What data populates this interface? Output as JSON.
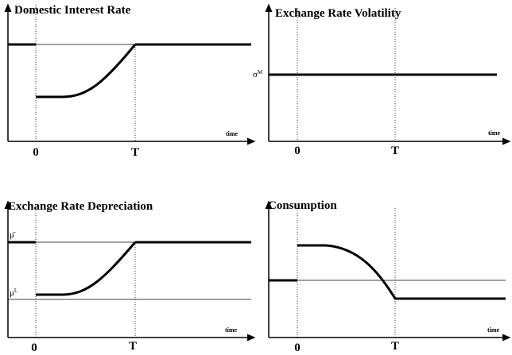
{
  "panels": [
    {
      "title": "Domestic Interest Rate",
      "axis_label": "time",
      "ticks": [
        "0",
        "T"
      ]
    },
    {
      "title": "Exchange Rate Volatility",
      "axis_label": "time",
      "ticks": [
        "0",
        "T"
      ],
      "levels": [
        "σ",
        "M"
      ]
    },
    {
      "title": "Exchange Rate Depreciation",
      "axis_label": "time",
      "ticks": [
        "0",
        "T"
      ],
      "levels": [
        "μ̄",
        "μ",
        "L"
      ]
    },
    {
      "title": "Consumption",
      "axis_label": "time",
      "ticks": [
        "0",
        "T"
      ]
    }
  ]
}
